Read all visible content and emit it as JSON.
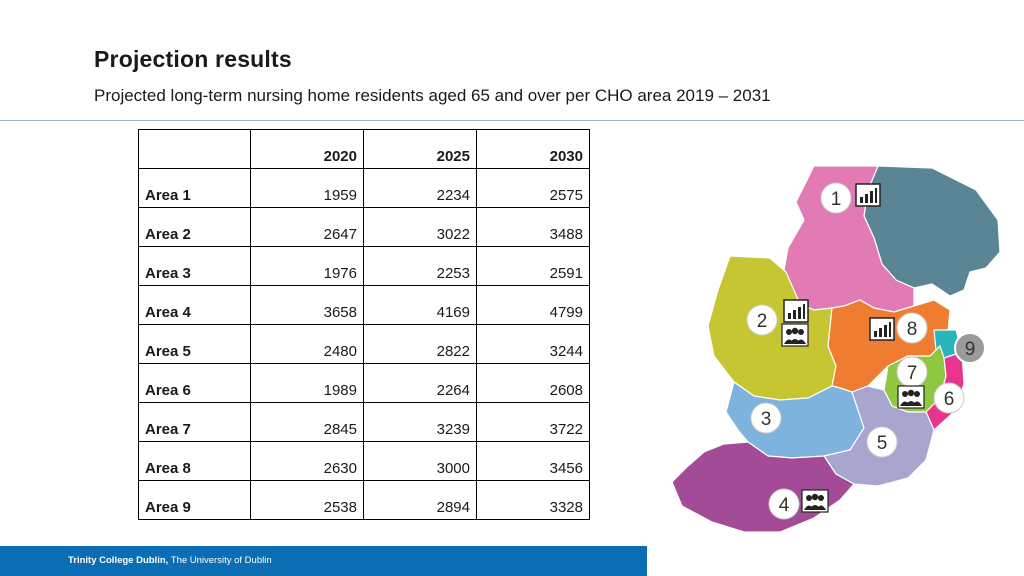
{
  "header": {
    "title": "Projection results",
    "subtitle": "Projected long-term nursing home residents aged 65 and over per CHO area 2019 – 2031"
  },
  "table": {
    "columns": [
      "",
      "2020",
      "2025",
      "2030"
    ],
    "rows": [
      {
        "area": "Area 1",
        "values": [
          "1959",
          "2234",
          "2575"
        ]
      },
      {
        "area": "Area 2",
        "values": [
          "2647",
          "3022",
          "3488"
        ]
      },
      {
        "area": "Area 3",
        "values": [
          "1976",
          "2253",
          "2591"
        ]
      },
      {
        "area": "Area 4",
        "values": [
          "3658",
          "4169",
          "4799"
        ]
      },
      {
        "area": "Area 5",
        "values": [
          "2480",
          "2822",
          "3244"
        ]
      },
      {
        "area": "Area 6",
        "values": [
          "1989",
          "2264",
          "2608"
        ]
      },
      {
        "area": "Area 7",
        "values": [
          "2845",
          "3239",
          "3722"
        ]
      },
      {
        "area": "Area 8",
        "values": [
          "2630",
          "3000",
          "3456"
        ]
      },
      {
        "area": "Area 9",
        "values": [
          "2538",
          "2894",
          "3328"
        ]
      }
    ]
  },
  "map": {
    "area_numbers": [
      "1",
      "2",
      "3",
      "4",
      "5",
      "6",
      "7",
      "8",
      "9"
    ],
    "colors": {
      "area1": "#e27ab4",
      "northern": "#5a8595",
      "area2": "#c6c632",
      "area3": "#7db3dc",
      "area4": "#a34b97",
      "area5": "#a8a6cf",
      "area6": "#e8338f",
      "area7": "#8fc741",
      "area8": "#ef7d31",
      "area9": "#28b5bd",
      "marker": "#ffffff",
      "marker_grey": "#9a9a9a"
    },
    "icons": [
      "bar-chart-icon",
      "people-group-icon"
    ]
  },
  "footer": {
    "institution": "Trinity College Dublin,",
    "tagline": " The University of Dublin"
  }
}
